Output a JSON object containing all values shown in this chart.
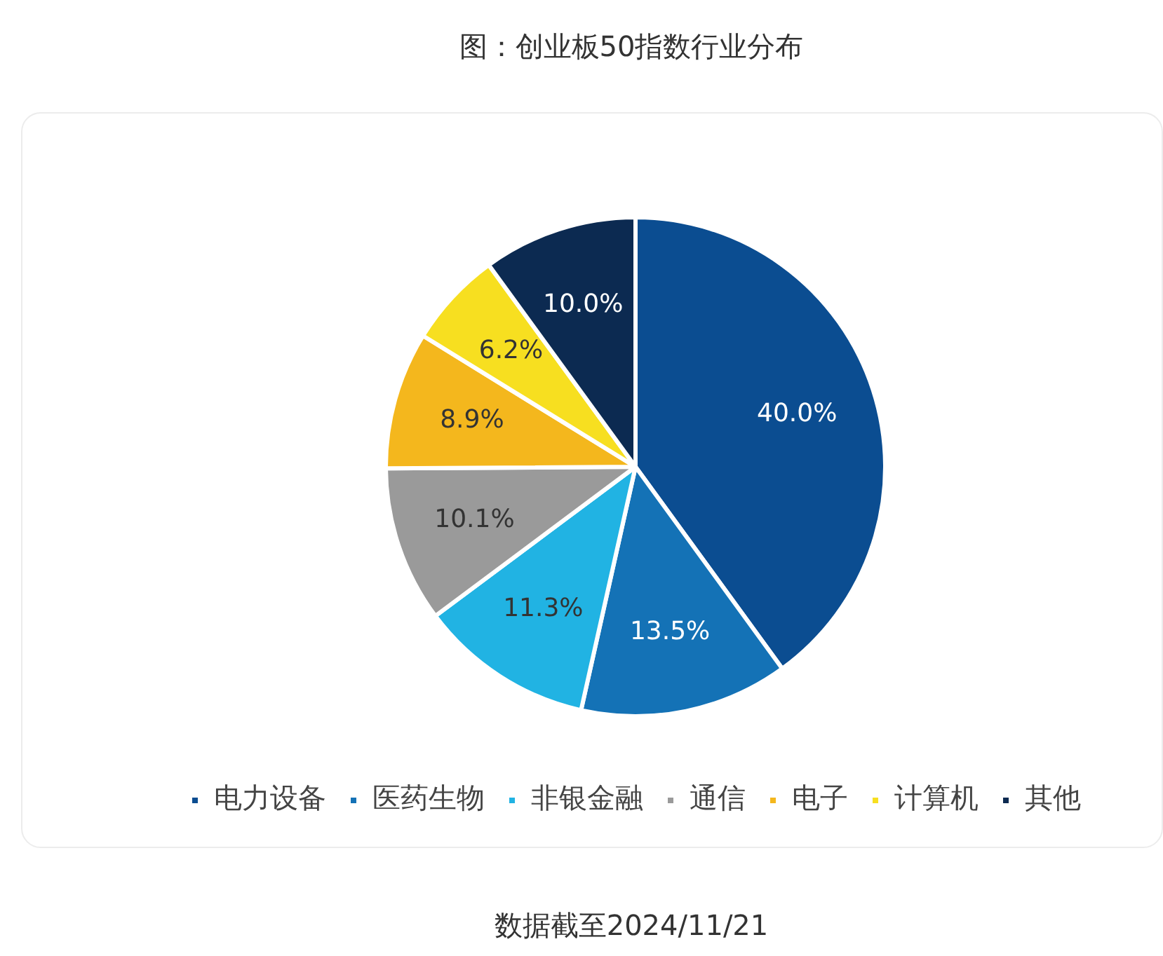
{
  "chart_data": {
    "type": "pie",
    "title": "图：创业板50指数行业分布",
    "categories": [
      "电力设备",
      "医药生物",
      "非银金融",
      "通信",
      "电子",
      "计算机",
      "其他"
    ],
    "values": [
      40.0,
      13.5,
      11.3,
      10.1,
      8.9,
      6.2,
      10.0
    ],
    "value_labels": [
      "40.0%",
      "13.5%",
      "11.3%",
      "10.1%",
      "8.9%",
      "6.2%",
      "10.0%"
    ],
    "colors": [
      "#0b4d91",
      "#1472b6",
      "#21b3e3",
      "#9a9a9a",
      "#f4b71d",
      "#f7df20",
      "#0c2a51"
    ],
    "legend": "bottom",
    "annotations": [
      "数据截至2024/11/21"
    ]
  }
}
